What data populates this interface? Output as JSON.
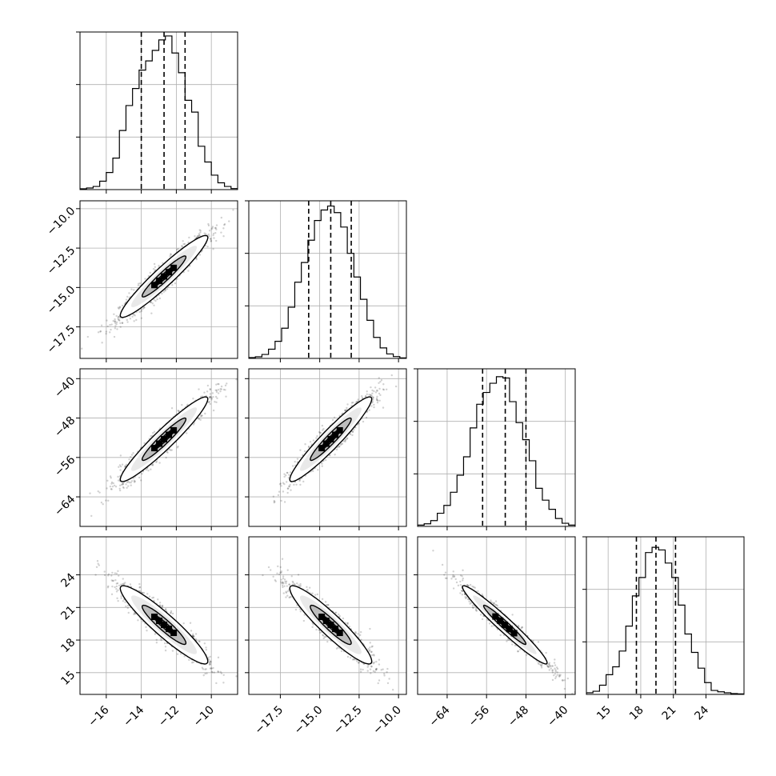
{
  "chart_data": {
    "type": "corner",
    "n_params": 4,
    "grid": true,
    "quantile_style": "dashed",
    "params": [
      {
        "lim": [
          -17.5,
          -8.5
        ],
        "ticks": [
          -16,
          -14,
          -12,
          -10
        ],
        "tick_labels": [
          "−16",
          "−14",
          "−12",
          "−10"
        ],
        "quantiles": [
          -14.0,
          -12.7,
          -11.5
        ],
        "hist": [
          0.3,
          0.6,
          1.2,
          3.2,
          6.5,
          12.0,
          22.5,
          32.0,
          38.5,
          45.5,
          49.0,
          53.0,
          57.0,
          58.5,
          52.0,
          44.5,
          34.0,
          29.5,
          16.5,
          10.5,
          5.5,
          2.6,
          1.2,
          0.4
        ]
      },
      {
        "lim": [
          -19.5,
          -9.5
        ],
        "ticks": [
          -17.5,
          -15.0,
          -12.5,
          -10.0
        ],
        "tick_labels": [
          "−17.5",
          "−15.0",
          "−12.5",
          "−10.0"
        ],
        "quantiles": [
          -15.7,
          -14.3,
          -13.0
        ],
        "hist": [
          0.3,
          0.6,
          1.5,
          3.5,
          6.5,
          11.5,
          19.5,
          29.0,
          36.5,
          45.0,
          52.5,
          56.5,
          58.0,
          55.5,
          50.0,
          40.0,
          31.0,
          22.5,
          14.5,
          8.0,
          4.0,
          1.7,
          0.7,
          0.2
        ]
      },
      {
        "lim": [
          -70,
          -38
        ],
        "ticks": [
          -64,
          -56,
          -48,
          -40
        ],
        "tick_labels": [
          "−64",
          "−56",
          "−48",
          "−40"
        ],
        "quantiles": [
          -56.8,
          -52.2,
          -48.0
        ],
        "hist": [
          0.5,
          1.0,
          2.2,
          5.0,
          8.0,
          13.0,
          19.5,
          26.5,
          37.5,
          46.5,
          51.0,
          54.5,
          57.0,
          56.5,
          47.5,
          39.5,
          33.0,
          25.0,
          14.5,
          10.0,
          6.5,
          3.0,
          1.2,
          0.5
        ]
      },
      {
        "lim": [
          13.0,
          27.5
        ],
        "ticks": [
          15,
          18,
          21,
          24
        ],
        "tick_labels": [
          "15",
          "18",
          "21",
          "24"
        ],
        "quantiles": [
          17.6,
          19.4,
          21.2
        ],
        "hist": [
          0.6,
          1.2,
          3.5,
          7.5,
          10.5,
          16.5,
          26.0,
          37.5,
          44.5,
          54.0,
          56.0,
          55.0,
          50.0,
          44.5,
          34.0,
          23.0,
          16.0,
          10.0,
          4.5,
          1.5,
          1.0,
          0.6,
          0.3,
          0.2
        ]
      }
    ],
    "hist_max": 60,
    "hist_ticks": [
      20,
      40,
      60
    ],
    "y_tick_params": [
      {
        "param": 1,
        "ticks": [
          -10.0,
          -12.5,
          -15.0,
          -17.5
        ],
        "tick_labels": [
          "−10.0",
          "−12.5",
          "−15.0",
          "−17.5"
        ]
      },
      {
        "param": 2,
        "ticks": [
          -40,
          -48,
          -56,
          -64
        ],
        "tick_labels": [
          "−40",
          "−48",
          "−56",
          "−64"
        ]
      },
      {
        "param": 3,
        "ticks": [
          24,
          21,
          18,
          15
        ],
        "tick_labels": [
          "24",
          "21",
          "18",
          "15"
        ]
      }
    ],
    "means": [
      -12.7,
      -14.3,
      -52.3,
      19.4
    ],
    "sds": [
      1.25,
      1.3,
      4.3,
      1.8
    ],
    "correlation": [
      [
        1.0,
        0.95,
        0.95,
        -0.93
      ],
      [
        0.95,
        1.0,
        0.95,
        -0.93
      ],
      [
        0.95,
        0.95,
        1.0,
        -0.97
      ],
      [
        -0.93,
        -0.93,
        -0.97,
        1.0
      ]
    ],
    "contour_levels_sigma": [
      0.5,
      1.0,
      1.5,
      2.0
    ]
  }
}
